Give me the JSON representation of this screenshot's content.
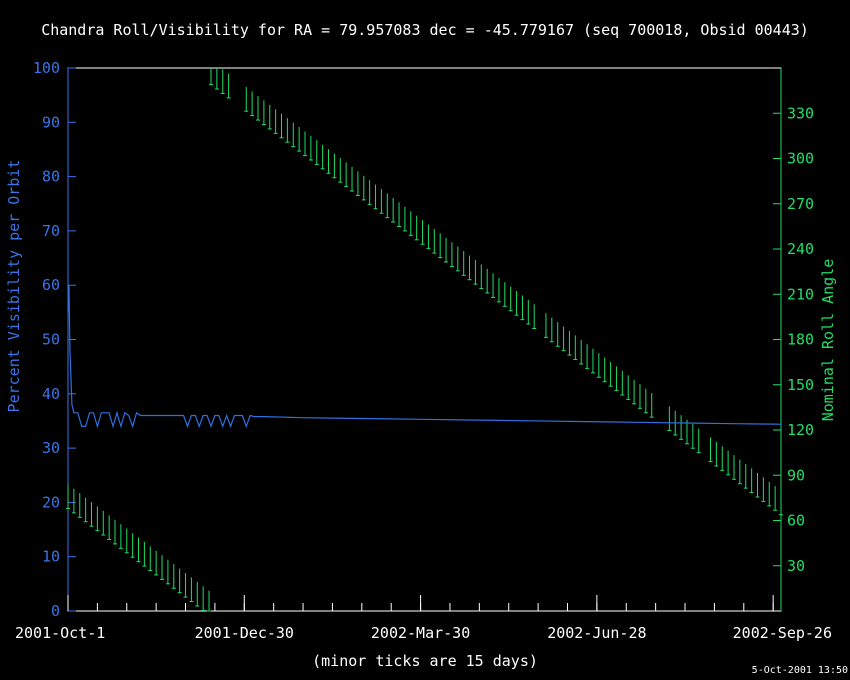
{
  "chart_data": {
    "type": "line",
    "title": "Chandra Roll/Visibility for RA = 79.957083 dec = -45.779167 (seq 700018, Obsid 00443)",
    "xlabel": "(minor ticks are 15 days)",
    "ylabel_left": "Percent Visibility per Orbit",
    "ylabel_right": "Nominal Roll Angle",
    "timestamp": "5-Oct-2001 13:50",
    "x_tick_labels": [
      "2001-Oct-1",
      "2001-Dec-30",
      "2002-Mar-30",
      "2002-Jun-28",
      "2002-Sep-26"
    ],
    "x_tick_days": [
      0,
      90,
      180,
      270,
      360
    ],
    "xlim_days": [
      0,
      364
    ],
    "minor_tick_days": 15,
    "ylim_left": [
      0,
      100
    ],
    "yticks_left": [
      0,
      10,
      20,
      30,
      40,
      50,
      60,
      70,
      80,
      90,
      100
    ],
    "ylim_right": [
      0,
      360
    ],
    "yticks_right": [
      30,
      60,
      90,
      120,
      150,
      180,
      210,
      240,
      270,
      300,
      330
    ],
    "visibility_color": "#2f6fe0",
    "roll_color": "#22dd66",
    "axis_color_left": "#3a74e8",
    "axis_color_right": "#22dd66",
    "visibility": {
      "x": [
        0,
        0.5,
        1,
        2,
        3,
        5,
        7,
        9,
        11,
        13,
        15,
        17,
        19,
        21,
        23,
        25,
        27,
        29,
        31,
        33,
        35,
        37,
        39,
        41,
        43,
        45,
        47,
        49,
        51,
        53,
        55,
        57,
        59,
        61,
        63,
        65,
        67,
        69,
        71,
        73,
        75,
        77,
        79,
        81,
        83,
        85,
        87,
        89,
        91,
        93,
        95,
        100,
        120,
        140,
        160,
        180,
        200,
        220,
        240,
        260,
        280,
        300,
        320,
        340,
        364
      ],
      "y": [
        55,
        60,
        48,
        38,
        36.5,
        36.5,
        34,
        34,
        36.5,
        36.5,
        34,
        36.5,
        36.5,
        36.5,
        34,
        36.5,
        34,
        36.5,
        36,
        34,
        36.5,
        36,
        36,
        36,
        36,
        36,
        36,
        36,
        36,
        36,
        36,
        36,
        36,
        34,
        36,
        36,
        34,
        36,
        36,
        34,
        36,
        36,
        34,
        36,
        34,
        36,
        36,
        36,
        34,
        36,
        35.8,
        35.8,
        35.6,
        35.5,
        35.4,
        35.3,
        35.2,
        35.1,
        35,
        34.9,
        34.8,
        34.7,
        34.6,
        34.5,
        34.4
      ]
    },
    "roll_bar_spacing_days": 3,
    "roll_bar_half_range_deg": 8,
    "roll_segments": [
      {
        "start_day": 0,
        "start_center": 76,
        "slope_deg_per_day": -0.98,
        "end_day": 72
      },
      {
        "start_day": 73,
        "start_center": 357,
        "slope_deg_per_day": -0.98,
        "end_day": 364
      }
    ],
    "roll_gaps_days": [
      [
        84,
        88
      ],
      [
        240,
        243
      ],
      [
        300,
        304
      ],
      [
        324,
        327
      ]
    ]
  }
}
